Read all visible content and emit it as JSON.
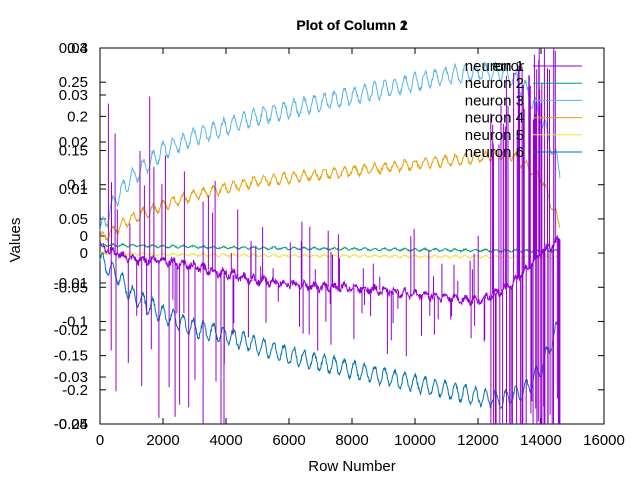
{
  "chart_data": [
    {
      "type": "line",
      "title": "Plot of Column 2",
      "xlabel": "Row Number",
      "ylabel": "Values",
      "xlim": [
        0,
        16000
      ],
      "ylim": [
        -0.25,
        0.3
      ],
      "x_ticks": [
        "0",
        "2000",
        "4000",
        "6000",
        "8000",
        "10000",
        "12000",
        "14000",
        "16000"
      ],
      "y_ticks": [
        "-0.25",
        "-0.2",
        "-0.15",
        "-0.1",
        "-0.05",
        "0",
        "0.05",
        "0.1",
        "0.15",
        "0.2",
        "0.25",
        "0.3"
      ],
      "legend_position": "top-right",
      "series": [
        {
          "name": "neuron 1",
          "color": "#9400d3",
          "x": [
            0,
            1000,
            2000,
            3000,
            4000,
            5000,
            6000,
            7000,
            8000,
            9000,
            10000,
            11000,
            12000,
            13000,
            14000,
            14600
          ],
          "y": [
            0.01,
            -0.01,
            -0.01,
            -0.02,
            -0.03,
            -0.04,
            -0.045,
            -0.05,
            -0.05,
            -0.055,
            -0.06,
            -0.065,
            -0.07,
            -0.05,
            0.0,
            0.02
          ]
        },
        {
          "name": "neuron 2",
          "color": "#009e73",
          "x": [
            0,
            2000,
            4000,
            6000,
            8000,
            10000,
            12000,
            14000,
            14600
          ],
          "y": [
            0.012,
            0.01,
            0.008,
            0.007,
            0.006,
            0.005,
            0.004,
            0.003,
            0.003
          ]
        },
        {
          "name": "neuron 3",
          "color": "#56b4e9",
          "x": [
            0,
            500,
            1000,
            2000,
            3000,
            4000,
            5000,
            6000,
            7000,
            8000,
            9000,
            10000,
            11000,
            12000,
            12800,
            13500,
            14000,
            14600
          ],
          "y": [
            0.03,
            0.08,
            0.11,
            0.15,
            0.17,
            0.185,
            0.2,
            0.21,
            0.22,
            0.23,
            0.24,
            0.25,
            0.26,
            0.265,
            0.265,
            0.24,
            0.2,
            0.12
          ]
        },
        {
          "name": "neuron 4",
          "color": "#e69f00",
          "x": [
            0,
            1000,
            2000,
            3000,
            4000,
            5000,
            6000,
            7000,
            8000,
            9000,
            10000,
            11000,
            12000,
            13000,
            14000,
            14600
          ],
          "y": [
            0.02,
            0.05,
            0.07,
            0.085,
            0.095,
            0.105,
            0.11,
            0.115,
            0.12,
            0.125,
            0.13,
            0.135,
            0.14,
            0.145,
            0.11,
            0.04
          ]
        },
        {
          "name": "neuron 5",
          "color": "#f0e442",
          "x": [
            0,
            2000,
            4000,
            6000,
            8000,
            10000,
            12000,
            14000,
            14600
          ],
          "y": [
            0.0,
            -0.002,
            -0.003,
            -0.004,
            -0.004,
            -0.005,
            -0.005,
            -0.006,
            -0.006
          ]
        },
        {
          "name": "neuron 6",
          "color": "#0072b2",
          "x": [
            0,
            500,
            1000,
            2000,
            3000,
            4000,
            5000,
            6000,
            7000,
            8000,
            9000,
            10000,
            11000,
            12000,
            12800,
            13500,
            14000,
            14600
          ],
          "y": [
            -0.01,
            -0.03,
            -0.06,
            -0.09,
            -0.11,
            -0.12,
            -0.135,
            -0.15,
            -0.16,
            -0.17,
            -0.18,
            -0.19,
            -0.2,
            -0.21,
            -0.215,
            -0.2,
            -0.17,
            -0.1
          ]
        }
      ]
    },
    {
      "type": "line",
      "title": "Plot of Column 1",
      "legend_position": "top-right",
      "ylim": [
        -0.04,
        0.04
      ],
      "y_ticks": [
        "-0.04",
        "-0.03",
        "-0.02",
        "-0.01",
        "0",
        "0.01",
        "0.02",
        "0.03",
        "0.04"
      ],
      "series": [
        {
          "name": "error",
          "color": "#9400d3"
        }
      ]
    }
  ]
}
